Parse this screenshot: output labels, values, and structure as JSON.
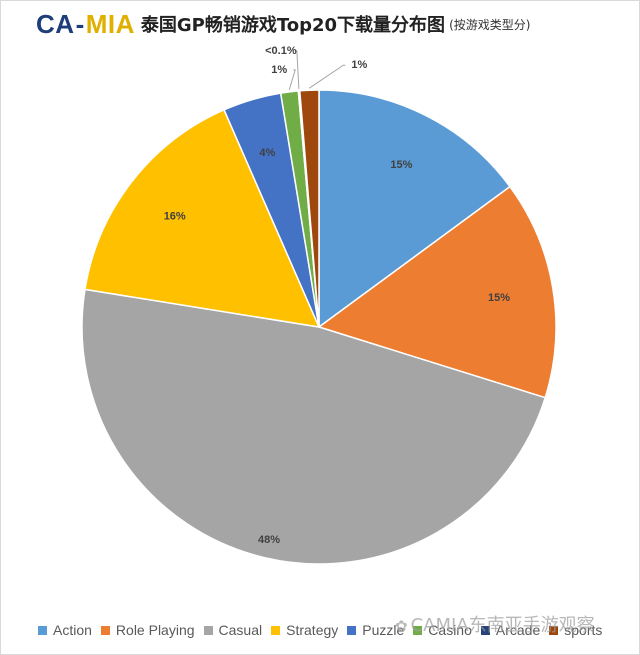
{
  "header": {
    "logo_part1": "CA",
    "logo_dash": "-",
    "logo_part2": "MIA",
    "title": "泰国GP畅销游戏Top20下载量分布图",
    "subtitle": "(按游戏类型分)"
  },
  "watermark": {
    "icon": "wechat-icon",
    "text": "CAMIA东南亚手游观察"
  },
  "chart_data": {
    "type": "pie",
    "title": "泰国GP畅销游戏Top20下载量分布图",
    "subtitle": "(按游戏类型分)",
    "start_angle_deg": 0,
    "direction": "clockwise",
    "slices": [
      {
        "name": "Action",
        "value": 15.0,
        "label": "15%",
        "color": "#5b9bd5"
      },
      {
        "name": "Role Playing",
        "value": 15.0,
        "label": "15%",
        "color": "#ed7d31"
      },
      {
        "name": "Casual",
        "value": 48.0,
        "label": "48%",
        "color": "#a5a5a5"
      },
      {
        "name": "Strategy",
        "value": 16.0,
        "label": "16%",
        "color": "#ffc000"
      },
      {
        "name": "Puzzle",
        "value": 4.0,
        "label": "4%",
        "color": "#4472c4"
      },
      {
        "name": "Casino",
        "value": 1.2,
        "label": "1%",
        "color": "#70ad47"
      },
      {
        "name": "Arcade",
        "value": 0.1,
        "label": "<0.1%",
        "color": "#264478"
      },
      {
        "name": "sports",
        "value": 1.3,
        "label": "1%",
        "color": "#9e480e"
      }
    ],
    "legend_position": "bottom"
  }
}
